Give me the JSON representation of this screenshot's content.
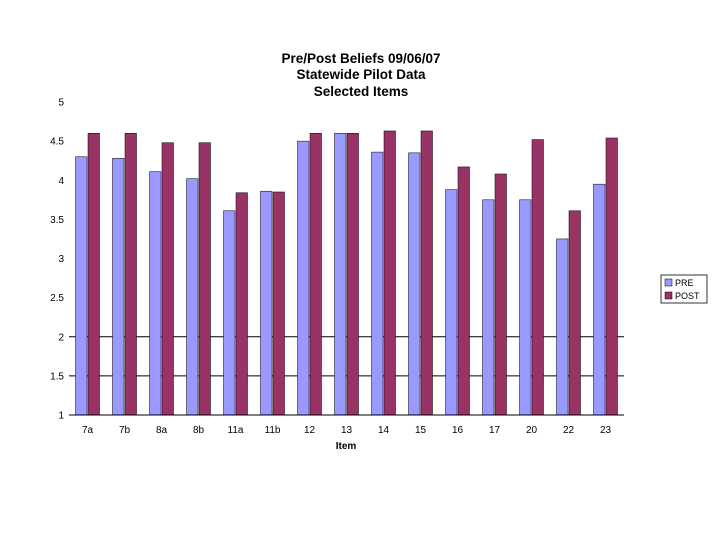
{
  "chart_data": {
    "type": "bar",
    "title_lines": [
      "Pre/Post Beliefs 09/06/07",
      "Statewide Pilot Data",
      "Selected Items"
    ],
    "xlabel": "Item",
    "ylabel": "",
    "categories": [
      "7a",
      "7b",
      "8a",
      "8b",
      "11a",
      "11b",
      "12",
      "13",
      "14",
      "15",
      "16",
      "17",
      "20",
      "22",
      "23"
    ],
    "series": [
      {
        "name": "PRE",
        "color": "#9999ff",
        "values": [
          4.3,
          4.28,
          4.11,
          4.02,
          3.61,
          3.86,
          4.5,
          4.6,
          4.36,
          4.35,
          3.88,
          3.75,
          3.75,
          3.25,
          3.95
        ]
      },
      {
        "name": "POST",
        "color": "#993366",
        "values": [
          4.6,
          4.6,
          4.48,
          4.48,
          3.84,
          3.85,
          4.6,
          4.6,
          4.63,
          4.63,
          4.17,
          4.08,
          4.52,
          3.61,
          4.54
        ]
      }
    ],
    "ylim": [
      1,
      5
    ],
    "yticks": [
      1,
      1.5,
      2,
      2.5,
      3,
      3.5,
      4,
      4.5,
      5
    ],
    "ytick_labels": [
      "1",
      "1.5",
      "2",
      "2.5",
      "3",
      "3.5",
      "4",
      "4.5",
      "5"
    ],
    "gridlines_visible": [
      1.5,
      2
    ],
    "grid": "partial",
    "legend_position": "right"
  }
}
